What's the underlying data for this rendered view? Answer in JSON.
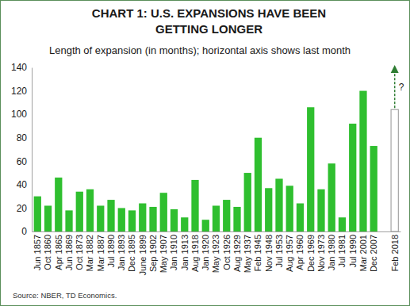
{
  "chart_data": {
    "type": "bar",
    "title": "CHART 1: U.S. EXPANSIONS HAVE BEEN GETTING LONGER",
    "subtitle": "Length of expansion (in months); horizontal axis shows last month",
    "source": "Source: NBER, TD Economics.",
    "categories": [
      "Jun 1857",
      "Oct 1860",
      "Apr 1865",
      "Jun 1869",
      "Oct 1873",
      "Mar 1882",
      "Mar 1887",
      "Jul 1890",
      "Jan 1893",
      "Dec 1895",
      "June 1899",
      "Sep 1902",
      "May 1907",
      "Jan 1910",
      "Jan 1913",
      "Aug 1918",
      "Jan 1920",
      "May 1923",
      "Oct 1926",
      "Aug 1929",
      "May 1937",
      "Feb 1945",
      "Nov 1948",
      "Jul 1953",
      "Aug 1957",
      "Apr 1960",
      "Dec 1969",
      "Nov 1973",
      "Jan 1980",
      "Jul 1981",
      "Jul 1990",
      "Mar 2001",
      "Dec 2007",
      null,
      "Feb 2018"
    ],
    "values": [
      30,
      22,
      46,
      18,
      34,
      36,
      22,
      27,
      20,
      18,
      24,
      21,
      33,
      19,
      12,
      44,
      10,
      22,
      27,
      21,
      50,
      80,
      37,
      45,
      39,
      24,
      106,
      36,
      58,
      12,
      92,
      120,
      73,
      null,
      104
    ],
    "colors": [
      "#2fbf2f",
      "#2fbf2f",
      "#2fbf2f",
      "#2fbf2f",
      "#2fbf2f",
      "#2fbf2f",
      "#2fbf2f",
      "#2fbf2f",
      "#2fbf2f",
      "#2fbf2f",
      "#2fbf2f",
      "#2fbf2f",
      "#2fbf2f",
      "#2fbf2f",
      "#2fbf2f",
      "#2fbf2f",
      "#2fbf2f",
      "#2fbf2f",
      "#2fbf2f",
      "#2fbf2f",
      "#2fbf2f",
      "#2fbf2f",
      "#2fbf2f",
      "#2fbf2f",
      "#2fbf2f",
      "#2fbf2f",
      "#2fbf2f",
      "#2fbf2f",
      "#2fbf2f",
      "#2fbf2f",
      "#2fbf2f",
      "#2fbf2f",
      "#2fbf2f",
      null,
      "#ffffff"
    ],
    "ylim": [
      0,
      140
    ],
    "yticks": [
      0,
      20,
      40,
      60,
      80,
      100,
      120,
      140
    ],
    "grid": false,
    "annotations": [
      {
        "text": "?"
      }
    ]
  }
}
